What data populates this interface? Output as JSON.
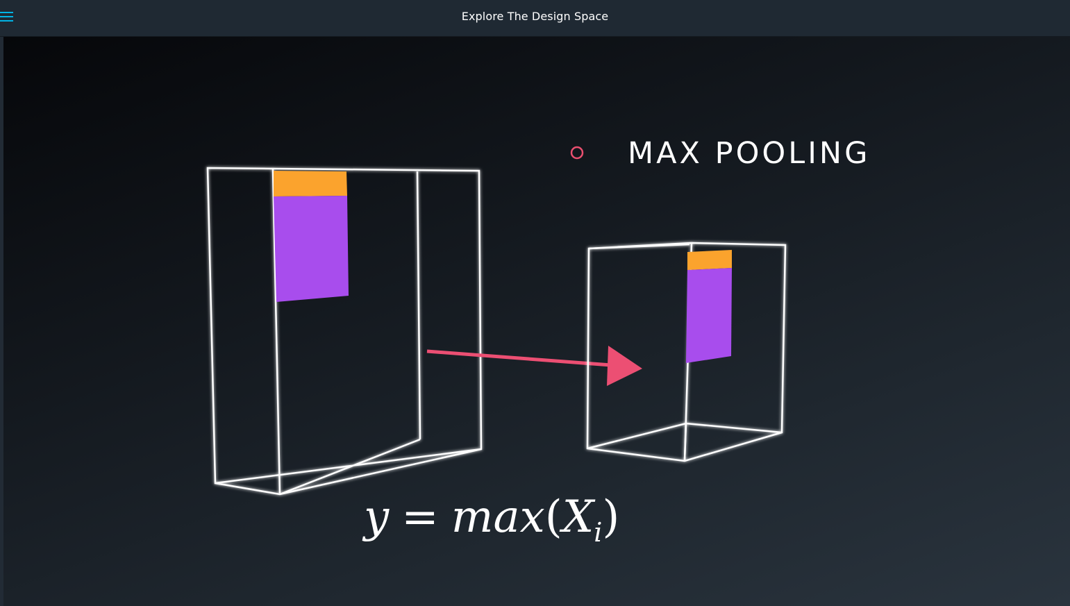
{
  "header": {
    "title": "Explore The Design Space",
    "menu_icon": "hamburger-menu-icon"
  },
  "video": {
    "bullet_icon": "ring-bullet-icon",
    "bullet_color": "#e94f6f",
    "heading": "MAX POOLING",
    "formula": {
      "lhs": "y",
      "eq": "=",
      "func": "max",
      "open": "(",
      "var": "X",
      "sub": "i",
      "close": ")"
    },
    "colors": {
      "orange": "#fba32d",
      "purple": "#a84ded",
      "arrow": "#ec4f73",
      "wire": "#ffffff"
    }
  }
}
